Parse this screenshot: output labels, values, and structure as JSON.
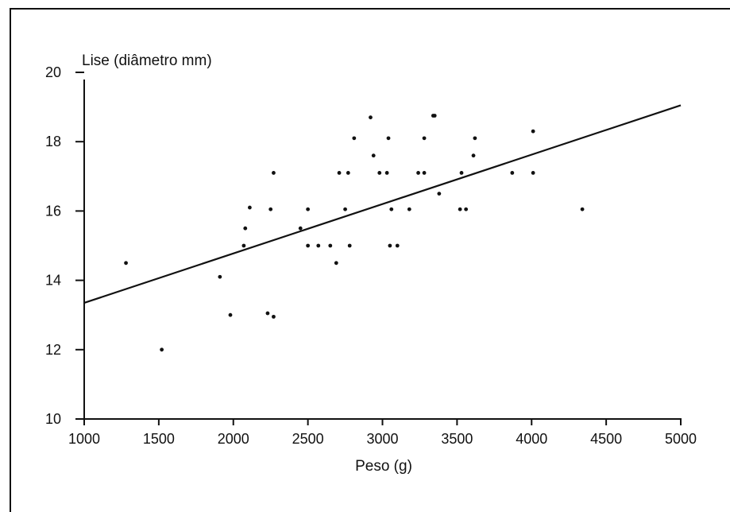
{
  "chart_data": {
    "type": "scatter",
    "title": "",
    "xlabel": "Peso (g)",
    "ylabel": "Lise (diâmetro mm)",
    "xlim": [
      1000,
      5000
    ],
    "ylim": [
      10,
      20
    ],
    "xticks": [
      "1000",
      "1500",
      "2000",
      "2500",
      "3000",
      "3500",
      "4000",
      "4500",
      "5000"
    ],
    "yticks": [
      "10",
      "12",
      "14",
      "16",
      "18",
      "20"
    ],
    "grid": false,
    "series": [
      {
        "points": [
          {
            "x": 1280,
            "y": 14.5
          },
          {
            "x": 1520,
            "y": 12.0
          },
          {
            "x": 1910,
            "y": 14.1
          },
          {
            "x": 1980,
            "y": 13.0
          },
          {
            "x": 2070,
            "y": 15.0
          },
          {
            "x": 2080,
            "y": 15.5
          },
          {
            "x": 2110,
            "y": 16.1
          },
          {
            "x": 2230,
            "y": 13.05
          },
          {
            "x": 2250,
            "y": 16.05
          },
          {
            "x": 2270,
            "y": 12.95
          },
          {
            "x": 2270,
            "y": 17.1
          },
          {
            "x": 2450,
            "y": 15.5
          },
          {
            "x": 2500,
            "y": 16.05
          },
          {
            "x": 2500,
            "y": 15.0
          },
          {
            "x": 2570,
            "y": 15.0
          },
          {
            "x": 2650,
            "y": 15.0
          },
          {
            "x": 2690,
            "y": 14.5
          },
          {
            "x": 2710,
            "y": 17.1
          },
          {
            "x": 2750,
            "y": 16.05
          },
          {
            "x": 2770,
            "y": 17.1
          },
          {
            "x": 2780,
            "y": 15.0
          },
          {
            "x": 2810,
            "y": 18.1
          },
          {
            "x": 2920,
            "y": 18.7
          },
          {
            "x": 2940,
            "y": 17.6
          },
          {
            "x": 2980,
            "y": 17.1
          },
          {
            "x": 3030,
            "y": 17.1
          },
          {
            "x": 3040,
            "y": 18.1
          },
          {
            "x": 3050,
            "y": 15.0
          },
          {
            "x": 3060,
            "y": 16.05
          },
          {
            "x": 3100,
            "y": 15.0
          },
          {
            "x": 3180,
            "y": 16.05
          },
          {
            "x": 3240,
            "y": 17.1
          },
          {
            "x": 3280,
            "y": 17.1
          },
          {
            "x": 3280,
            "y": 18.1
          },
          {
            "x": 3340,
            "y": 18.75
          },
          {
            "x": 3350,
            "y": 18.75
          },
          {
            "x": 3380,
            "y": 16.5
          },
          {
            "x": 3520,
            "y": 16.05
          },
          {
            "x": 3530,
            "y": 17.1
          },
          {
            "x": 3560,
            "y": 16.05
          },
          {
            "x": 3610,
            "y": 17.6
          },
          {
            "x": 3620,
            "y": 18.1
          },
          {
            "x": 3870,
            "y": 17.1
          },
          {
            "x": 4010,
            "y": 18.3
          },
          {
            "x": 4010,
            "y": 17.1
          },
          {
            "x": 4340,
            "y": 16.05
          }
        ]
      }
    ],
    "regression_line": {
      "x1": 1000,
      "y1": 13.35,
      "x2": 5000,
      "y2": 19.05
    }
  }
}
